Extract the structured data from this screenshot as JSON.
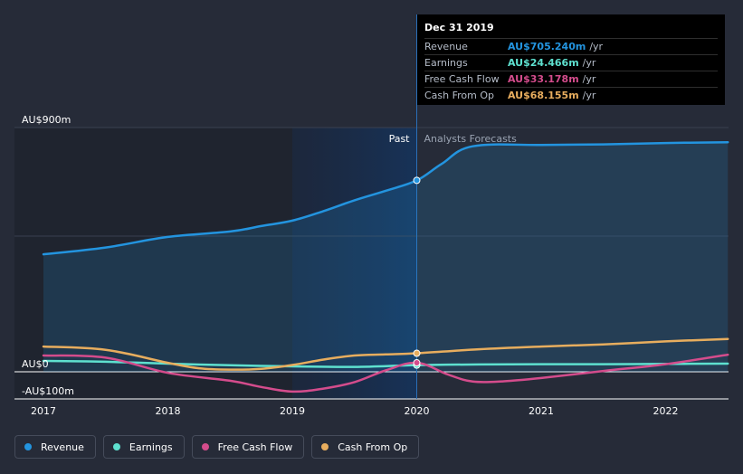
{
  "chart_data": {
    "type": "line",
    "title": "",
    "x_ticks": [
      2017,
      2018,
      2019,
      2020,
      2021,
      2022
    ],
    "tick_labels": [
      "2017",
      "2018",
      "2019",
      "2020",
      "2021",
      "2022"
    ],
    "y_axis_labels": [
      "AU$900m",
      "AU$0",
      "-AU$100m"
    ],
    "ylim": [
      -100,
      900
    ],
    "divider_x": 2020.0,
    "period_labels": {
      "past": "Past",
      "forecast": "Analysts Forecasts"
    },
    "series": [
      {
        "name": "Revenue",
        "key": "revenue",
        "color": "#2394df",
        "area": true,
        "points": [
          [
            2017.0,
            433
          ],
          [
            2017.5,
            458
          ],
          [
            2018.0,
            497
          ],
          [
            2018.5,
            517
          ],
          [
            2018.75,
            537
          ],
          [
            2019.0,
            557
          ],
          [
            2019.25,
            592
          ],
          [
            2019.5,
            632
          ],
          [
            2019.75,
            667
          ],
          [
            2020.0,
            705.24
          ],
          [
            2020.2,
            766
          ],
          [
            2020.45,
            831
          ],
          [
            2021.0,
            836
          ],
          [
            2021.5,
            838
          ],
          [
            2022.0,
            843
          ],
          [
            2022.5,
            846
          ]
        ]
      },
      {
        "name": "Earnings",
        "key": "earnings",
        "color": "#5ee0cf",
        "area": false,
        "points": [
          [
            2017.0,
            40
          ],
          [
            2017.5,
            37
          ],
          [
            2018.0,
            30
          ],
          [
            2018.5,
            24
          ],
          [
            2019.0,
            20
          ],
          [
            2019.5,
            18
          ],
          [
            2020.0,
            24.466
          ],
          [
            2020.5,
            27
          ],
          [
            2021.0,
            28
          ],
          [
            2021.5,
            28
          ],
          [
            2022.0,
            29
          ],
          [
            2022.5,
            30
          ]
        ]
      },
      {
        "name": "Free Cash Flow",
        "key": "fcf",
        "color": "#d44c8c",
        "area": false,
        "points": [
          [
            2017.0,
            60
          ],
          [
            2017.5,
            52
          ],
          [
            2018.0,
            -4
          ],
          [
            2018.5,
            -33
          ],
          [
            2018.75,
            -56
          ],
          [
            2019.0,
            -73
          ],
          [
            2019.25,
            -62
          ],
          [
            2019.5,
            -38
          ],
          [
            2019.75,
            5
          ],
          [
            2020.0,
            33.178
          ],
          [
            2020.25,
            -10
          ],
          [
            2020.45,
            -36
          ],
          [
            2020.7,
            -35
          ],
          [
            2021.0,
            -23
          ],
          [
            2021.5,
            3
          ],
          [
            2022.0,
            28
          ],
          [
            2022.5,
            63
          ]
        ]
      },
      {
        "name": "Cash From Op",
        "key": "cfo",
        "color": "#e7ad5e",
        "area": false,
        "points": [
          [
            2017.0,
            93
          ],
          [
            2017.5,
            81
          ],
          [
            2018.0,
            33
          ],
          [
            2018.25,
            13
          ],
          [
            2018.5,
            8
          ],
          [
            2018.75,
            11
          ],
          [
            2019.0,
            25
          ],
          [
            2019.25,
            45
          ],
          [
            2019.5,
            60
          ],
          [
            2019.75,
            64
          ],
          [
            2020.0,
            68.155
          ],
          [
            2020.5,
            83
          ],
          [
            2021.0,
            93
          ],
          [
            2021.5,
            101
          ],
          [
            2022.0,
            112
          ],
          [
            2022.5,
            121
          ]
        ]
      }
    ]
  },
  "tooltip": {
    "date": "Dec 31 2019",
    "unit": "/yr",
    "rows": [
      {
        "label": "Revenue",
        "value": "AU$705.240m",
        "color": "#2394df"
      },
      {
        "label": "Earnings",
        "value": "AU$24.466m",
        "color": "#5ee0cf"
      },
      {
        "label": "Free Cash Flow",
        "value": "AU$33.178m",
        "color": "#d44c8c"
      },
      {
        "label": "Cash From Op",
        "value": "AU$68.155m",
        "color": "#e7ad5e"
      }
    ]
  },
  "legend": [
    {
      "label": "Revenue",
      "color": "#2394df"
    },
    {
      "label": "Earnings",
      "color": "#5ee0cf"
    },
    {
      "label": "Free Cash Flow",
      "color": "#d44c8c"
    },
    {
      "label": "Cash From Op",
      "color": "#e7ad5e"
    }
  ]
}
